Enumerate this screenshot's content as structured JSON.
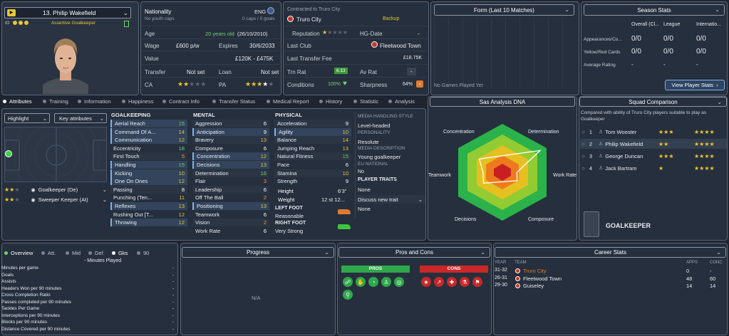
{
  "profile": {
    "number_name": "13. Philip Wakefield",
    "role_label": "Assertive Goalkeeper",
    "io": "IO"
  },
  "info": {
    "nationality_label": "Nationality",
    "nationality_value": "ENG",
    "youth_caps": "No youth caps",
    "caps": "0 caps / 0 goals",
    "age_label": "Age",
    "age_years": "20 years old",
    "age_dob": "(26/10/2010)",
    "wage_label": "Wage",
    "wage_value": "£600 p/w",
    "expires_label": "Expires",
    "expires_value": "30/6/2033",
    "value_label": "Value",
    "value_value": "£120K - £475K",
    "transfer_label": "Transfer",
    "transfer_value": "Not set",
    "loan_label": "Loan",
    "loan_value": "Not set",
    "ca_label": "CA",
    "pa_label": "PA"
  },
  "contract": {
    "contracted_label": "Contracted to Truro City",
    "club": "Truro City",
    "squad_status": "Backup",
    "reputation_label": "Reputation",
    "hg_label": "HG-Date",
    "hg_value": "-",
    "last_club_label": "Last Club",
    "last_club_value": "Fleetwood Town",
    "fee_label": "Last Transfer Fee",
    "fee_value": "£18.75K",
    "trn_label": "Trn Rat",
    "trn_value": "6.13",
    "av_label": "Av Rat",
    "av_value": "-",
    "cond_label": "Conditions",
    "cond_value": "100%",
    "sharp_label": "Sharpness",
    "sharp_value": "64%"
  },
  "form": {
    "title": "Form (Last 10 Matches)",
    "empty": "No Games Played Yet"
  },
  "season": {
    "title": "Season Stats",
    "cols": [
      "Overall (Cl...",
      "League",
      "Internatio..."
    ],
    "rows": [
      [
        "Appearances/Co...",
        "0/0",
        "0/0",
        "0/0"
      ],
      [
        "Yellow/Red Cards",
        "0/0",
        "0/0",
        "0/0"
      ],
      [
        "Average Rating",
        "-",
        "-",
        "-"
      ]
    ],
    "button": "View Player Stats"
  },
  "tabs": [
    "Attributes",
    "Training",
    "Information",
    "Happiness",
    "Contract Info",
    "Transfer Status",
    "Medical Report",
    "History",
    "Statistic",
    "Analysis"
  ],
  "highlight": {
    "label": "Highlight",
    "key": "Key attributes"
  },
  "roles": [
    {
      "name": "Goalkeeper (De)"
    },
    {
      "name": "Sweeper Keeper (At)"
    }
  ],
  "attributes": {
    "gk_title": "GOALKEEPING",
    "gk": [
      [
        "Aerial Reach",
        "15"
      ],
      [
        "Command Of A...",
        "14"
      ],
      [
        "Communication",
        "12"
      ],
      [
        "Eccentricity",
        "18"
      ],
      [
        "First Touch",
        "5"
      ],
      [
        "Handling",
        "15"
      ],
      [
        "Kicking",
        "10"
      ],
      [
        "One On Ones",
        "12"
      ],
      [
        "Passing",
        "8"
      ],
      [
        "Punching (Ten...",
        "11"
      ],
      [
        "Reflexes",
        "13"
      ],
      [
        "Rushing Out [T...",
        "12"
      ],
      [
        "Throwing",
        "12"
      ]
    ],
    "mental_title": "MENTAL",
    "mental": [
      [
        "Aggression",
        "6"
      ],
      [
        "Anticipation",
        "9"
      ],
      [
        "Bravery",
        "13"
      ],
      [
        "Composure",
        "6"
      ],
      [
        "Concentration",
        "12"
      ],
      [
        "Decisions",
        "13"
      ],
      [
        "Determination",
        "16"
      ],
      [
        "Flair",
        "3"
      ],
      [
        "Leadership",
        "6"
      ],
      [
        "Off The Ball",
        "2"
      ],
      [
        "Positioning",
        "13"
      ],
      [
        "Teamwork",
        "6"
      ],
      [
        "Vision",
        "2"
      ],
      [
        "Work Rate",
        "6"
      ]
    ],
    "physical_title": "PHYSICAL",
    "physical": [
      [
        "Acceleration",
        "9"
      ],
      [
        "Agility",
        "10"
      ],
      [
        "Balance",
        "14"
      ],
      [
        "Jumping Reach",
        "13"
      ],
      [
        "Natural Fitness",
        "15"
      ],
      [
        "Pace",
        "6"
      ],
      [
        "Stamina",
        "10"
      ],
      [
        "Strength",
        "9"
      ]
    ],
    "height_label": "Height",
    "height_value": "6'3\"",
    "weight_label": "Weight",
    "weight_value": "12 st 12...",
    "left_foot_label": "LEFT FOOT",
    "left_foot_value": "Reasonable",
    "right_foot_label": "RIGHT FOOT",
    "right_foot_value": "Very Strong"
  },
  "media": {
    "mh_title": "MEDIA HANDLING STYLE",
    "mh_value": "Level-headed",
    "pers_title": "PERSONALITY",
    "pers_value": "Resolute",
    "desc_title": "MEDIA DESCRIPTION",
    "desc_value": "Young goalkeeper",
    "eu_title": "EU NATIONAL",
    "eu_value": "No",
    "traits_title": "PLAYER TRAITS",
    "traits_value": "None",
    "discuss": "Discuss new trait",
    "traits_value2": "None"
  },
  "dna": {
    "title": "Sas Analysis DNA",
    "labels": [
      "Concentration",
      "Determination",
      "Work Rate",
      "Composure",
      "Decisions",
      "Teamwork"
    ],
    "values": [
      0.55,
      0.9,
      0.3,
      0.35,
      0.45,
      0.4
    ]
  },
  "squad": {
    "title": "Squad Comparison",
    "desc": "Compared with ability of Truro City players suitable to play as Goalkeeper",
    "players": [
      [
        "1",
        "Tom Wooster"
      ],
      [
        "2",
        "Philip Wakefield"
      ],
      [
        "3",
        "George Duncan"
      ],
      [
        "4",
        "Jack Bartram"
      ]
    ],
    "position": "GOALKEEPER"
  },
  "bottom_tabs": [
    "Overview",
    "Att.",
    "Mid",
    "Def.",
    "Gks",
    "90"
  ],
  "minutes_label": "- Minutes Played",
  "stat_rows": [
    "Minutes per game",
    "Goals",
    "Assists",
    "Headers Won per 90 minutes",
    "Cross Completion Ratio",
    "Passes completed per 90 minutes",
    "Tackles Per Game",
    "Interceptions per 90 minutes",
    "Blocks per 90 minutes",
    "Distance Covered per 90 minutes"
  ],
  "progress": {
    "title": "Progress",
    "na": "N/A"
  },
  "pros_cons": {
    "title": "Pros and Cons",
    "pros": "PROS",
    "cons": "CONS"
  },
  "career": {
    "title": "Career Stats",
    "col_year": "YEAR",
    "col_team": "TEAM",
    "col_apps": "APPS",
    "col_conc": "CONC",
    "rows": [
      [
        "31-32",
        "Truro City",
        "0",
        "-"
      ],
      [
        "26-31",
        "Fleetwood Town",
        "48",
        "60"
      ],
      [
        "29-30",
        "Guiseley",
        "14",
        "14"
      ]
    ]
  },
  "colors": {
    "accent": "#6fd46f",
    "yellow": "#e6c63a",
    "bg": "#1e2531"
  }
}
